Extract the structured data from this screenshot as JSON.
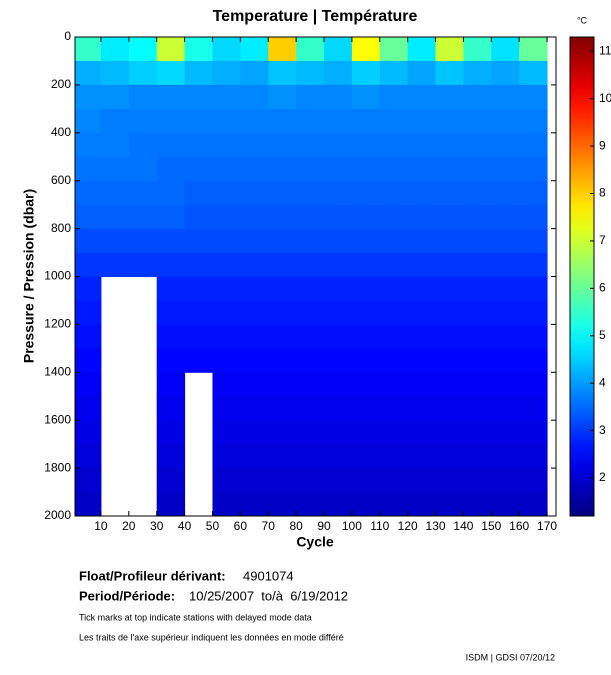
{
  "chart_data": {
    "type": "heatmap",
    "title": "Temperature | Température",
    "x_label": "Cycle",
    "y_label": "Pressure / Pression (dbar)",
    "xlim": [
      0.7,
      173.2
    ],
    "xticks": [
      10,
      20,
      30,
      40,
      50,
      60,
      70,
      80,
      90,
      100,
      110,
      120,
      130,
      140,
      150,
      160,
      170
    ],
    "ylim": [
      0,
      2000
    ],
    "yticks": [
      0,
      200,
      400,
      600,
      800,
      1000,
      1200,
      1400,
      1600,
      1800,
      2000
    ],
    "y_inverted": true,
    "x": [
      5,
      15,
      25,
      35,
      45,
      55,
      65,
      75,
      85,
      95,
      105,
      115,
      125,
      135,
      145,
      155,
      165
    ],
    "y": [
      50,
      150,
      250,
      350,
      450,
      550,
      650,
      750,
      850,
      950,
      1050,
      1150,
      1250,
      1350,
      1450,
      1550,
      1650,
      1750,
      1850,
      1950
    ],
    "z": [
      [
        5.5,
        4.8,
        5.0,
        7.0,
        5.2,
        4.6,
        4.8,
        8.0,
        5.5,
        4.6,
        7.5,
        6.0,
        4.8,
        7.0,
        5.5,
        4.7,
        6.0
      ],
      [
        4.2,
        4.3,
        4.5,
        4.6,
        4.3,
        4.2,
        4.1,
        4.4,
        4.3,
        4.2,
        4.5,
        4.3,
        4.1,
        4.4,
        4.2,
        4.1,
        4.3
      ],
      [
        3.9,
        3.9,
        3.8,
        3.8,
        3.8,
        3.8,
        3.8,
        3.9,
        3.8,
        3.8,
        3.9,
        3.8,
        3.8,
        3.8,
        3.8,
        3.8,
        3.8
      ],
      [
        3.8,
        3.7,
        3.7,
        3.7,
        3.7,
        3.7,
        3.7,
        3.7,
        3.7,
        3.7,
        3.7,
        3.7,
        3.7,
        3.7,
        3.7,
        3.7,
        3.7
      ],
      [
        3.7,
        3.7,
        3.6,
        3.6,
        3.6,
        3.6,
        3.6,
        3.6,
        3.6,
        3.6,
        3.6,
        3.6,
        3.6,
        3.6,
        3.6,
        3.6,
        3.6
      ],
      [
        3.6,
        3.6,
        3.6,
        3.5,
        3.5,
        3.5,
        3.5,
        3.5,
        3.5,
        3.5,
        3.5,
        3.5,
        3.5,
        3.5,
        3.5,
        3.5,
        3.5
      ],
      [
        3.5,
        3.5,
        3.5,
        3.5,
        3.4,
        3.4,
        3.4,
        3.4,
        3.4,
        3.4,
        3.4,
        3.4,
        3.4,
        3.4,
        3.4,
        3.4,
        3.4
      ],
      [
        3.4,
        3.4,
        3.4,
        3.4,
        3.3,
        3.3,
        3.3,
        3.3,
        3.3,
        3.3,
        3.3,
        3.3,
        3.3,
        3.3,
        3.3,
        3.3,
        3.3
      ],
      [
        3.2,
        3.2,
        3.2,
        3.2,
        3.2,
        3.2,
        3.2,
        3.2,
        3.2,
        3.2,
        3.2,
        3.2,
        3.2,
        3.2,
        3.2,
        3.2,
        3.2
      ],
      [
        3.0,
        3.0,
        3.0,
        3.0,
        3.0,
        3.0,
        3.0,
        3.0,
        3.0,
        3.0,
        3.0,
        3.0,
        3.0,
        3.0,
        3.0,
        3.0,
        3.0
      ],
      [
        2.8,
        null,
        null,
        2.8,
        2.8,
        2.8,
        2.8,
        2.8,
        2.8,
        2.8,
        2.8,
        2.8,
        2.8,
        2.8,
        2.8,
        2.8,
        2.8
      ],
      [
        2.7,
        null,
        null,
        2.7,
        2.7,
        2.7,
        2.7,
        2.7,
        2.7,
        2.7,
        2.7,
        2.7,
        2.7,
        2.7,
        2.7,
        2.7,
        2.7
      ],
      [
        2.6,
        null,
        null,
        2.6,
        2.6,
        2.6,
        2.6,
        2.6,
        2.6,
        2.6,
        2.6,
        2.6,
        2.6,
        2.6,
        2.6,
        2.6,
        2.6
      ],
      [
        2.5,
        null,
        null,
        2.5,
        2.5,
        2.5,
        2.5,
        2.5,
        2.5,
        2.5,
        2.5,
        2.5,
        2.5,
        2.5,
        2.5,
        2.5,
        2.5
      ],
      [
        2.4,
        null,
        null,
        2.4,
        null,
        2.4,
        2.4,
        2.4,
        2.4,
        2.4,
        2.4,
        2.4,
        2.4,
        2.4,
        2.4,
        2.4,
        2.4
      ],
      [
        2.3,
        null,
        null,
        2.3,
        null,
        2.3,
        2.3,
        2.3,
        2.3,
        2.3,
        2.3,
        2.3,
        2.3,
        2.3,
        2.3,
        2.3,
        2.3
      ],
      [
        2.2,
        null,
        null,
        2.2,
        null,
        2.2,
        2.2,
        2.2,
        2.2,
        2.2,
        2.2,
        2.2,
        2.2,
        2.2,
        2.2,
        2.2,
        2.2
      ],
      [
        2.1,
        null,
        null,
        2.1,
        null,
        2.1,
        2.1,
        2.1,
        2.1,
        2.1,
        2.1,
        2.1,
        2.1,
        2.1,
        2.1,
        2.1,
        2.1
      ],
      [
        2.0,
        null,
        null,
        2.0,
        null,
        2.0,
        2.0,
        2.0,
        2.0,
        2.0,
        2.0,
        2.0,
        2.0,
        2.0,
        2.0,
        2.0,
        2.0
      ],
      [
        1.9,
        null,
        null,
        1.9,
        null,
        1.9,
        1.9,
        1.9,
        1.9,
        1.9,
        1.9,
        1.9,
        1.9,
        1.9,
        1.9,
        1.9,
        1.9
      ]
    ],
    "colorbar": {
      "label": "°C",
      "lim": [
        1.2,
        11.3
      ],
      "ticks": [
        2,
        3,
        4,
        5,
        6,
        7,
        8,
        9,
        10,
        11
      ]
    },
    "float_label": "Float/Profileur dérivant:",
    "float_id": "4901074",
    "period_label": "Period/Période:",
    "period": "10/25/2007  to/à  6/19/2012",
    "note_en": "Tick marks at top indicate stations with delayed mode data",
    "note_fr": "Les traits de l'axe supérieur indiquent les données en mode différé",
    "credit": "ISDM | GDSI 07/20/12"
  }
}
